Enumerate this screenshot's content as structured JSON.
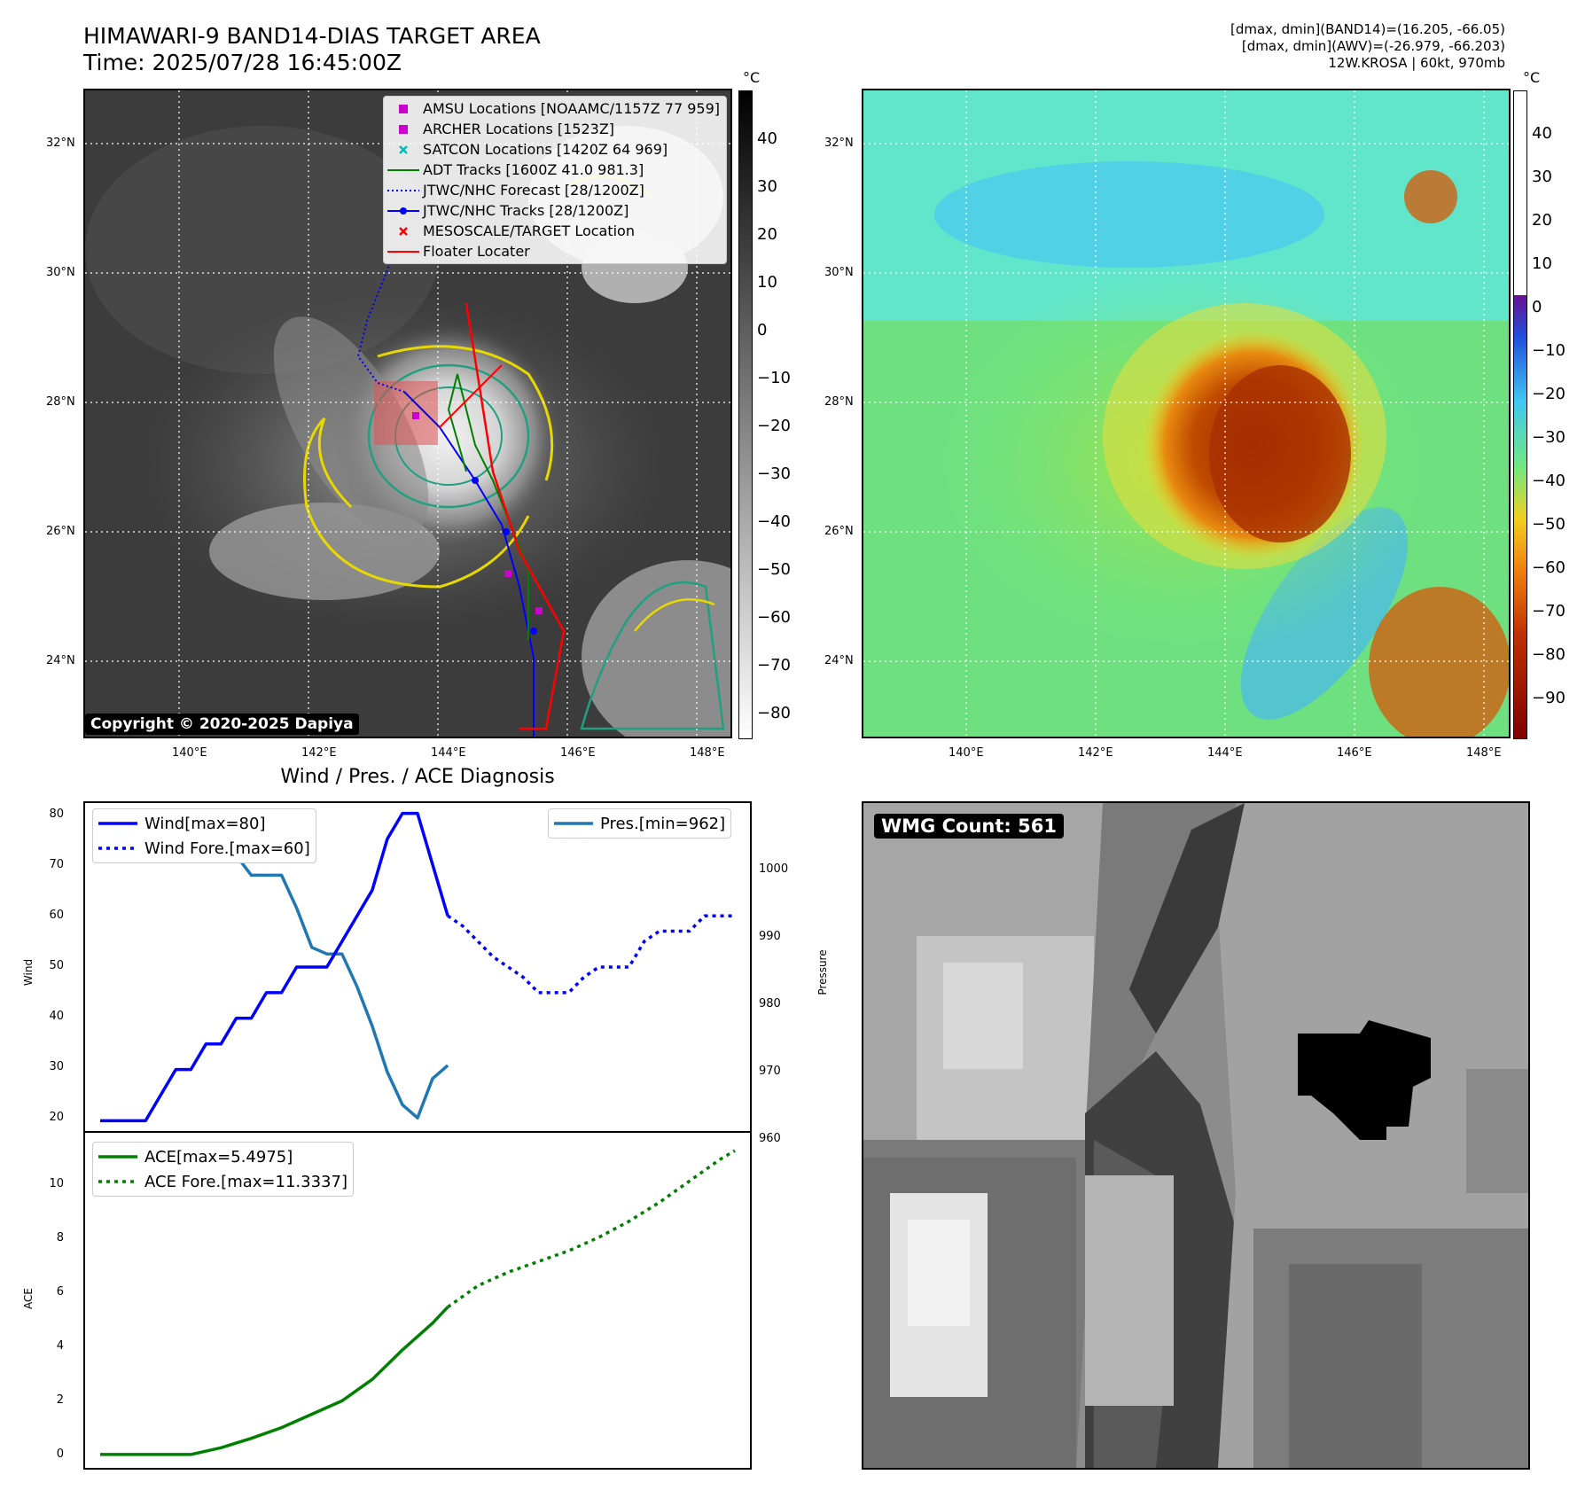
{
  "header": {
    "title_line1": "HIMAWARI-9 BAND14-DIAS TARGET AREA",
    "title_line2": "Time: 2025/07/28 16:45:00Z",
    "right_line1": "[dmax, dmin](BAND14)=(16.205, -66.05)",
    "right_line2": "[dmax, dmin](AWV)=(-26.979, -66.203)",
    "right_line3": "12W.KROSA | 60kt, 970mb"
  },
  "colors": {
    "wind": "#0000ff",
    "pressure": "#1f77b4",
    "ace": "#008000",
    "floater": "#ff0000",
    "amsu": "#cc00cc",
    "satcon": "#00bbbb",
    "adt": "#008000"
  },
  "map_axes": {
    "lat_ticks": [
      "32°N",
      "30°N",
      "28°N",
      "26°N",
      "24°N"
    ],
    "lon_ticks": [
      "140°E",
      "142°E",
      "144°E",
      "146°E",
      "148°E"
    ]
  },
  "ir_panel": {
    "cbar_unit": "°C",
    "cbar_ticks": [
      "40",
      "30",
      "20",
      "10",
      "0",
      "−10",
      "−20",
      "−30",
      "−40",
      "−50",
      "−60",
      "−70",
      "−80"
    ],
    "copyright": "Copyright © 2020-2025 Dapiya",
    "legend": [
      {
        "icon": "square-icon",
        "color": "#cc00cc",
        "label": "AMSU Locations [NOAAMC/1157Z 77 959]"
      },
      {
        "icon": "square-icon",
        "color": "#cc00cc",
        "label": "ARCHER Locations [1523Z]"
      },
      {
        "icon": "x-icon",
        "color": "#00bbbb",
        "label": "SATCON Locations [1420Z 64 969]"
      },
      {
        "icon": "line-icon",
        "color": "#008000",
        "label": "ADT Tracks [1600Z 41.0 981.3]"
      },
      {
        "icon": "dotted-line-icon",
        "color": "#0000ff",
        "label": "JTWC/NHC Forecast [28/1200Z]"
      },
      {
        "icon": "dot-line-icon",
        "color": "#0000ff",
        "label": "JTWC/NHC Tracks [28/1200Z]"
      },
      {
        "icon": "x-icon",
        "color": "#ff0000",
        "label": "MESOSCALE/TARGET Location"
      },
      {
        "icon": "line-icon",
        "color": "#ff0000",
        "label": "Floater Locater"
      }
    ]
  },
  "wv_panel": {
    "cbar_unit": "°C",
    "cbar_ticks": [
      "40",
      "30",
      "20",
      "10",
      "0",
      "−10",
      "−20",
      "−30",
      "−40",
      "−50",
      "−60",
      "−70",
      "−80",
      "−90"
    ]
  },
  "diag": {
    "title": "Wind / Pres. / ACE Diagnosis",
    "wind_ylabel": "Wind",
    "pres_ylabel": "Pressure",
    "ace_ylabel": "ACE",
    "wind_ticks": [
      "80",
      "70",
      "60",
      "50",
      "40",
      "30",
      "20"
    ],
    "pres_ticks": [
      "1000",
      "990",
      "980",
      "970",
      "960"
    ],
    "ace_ticks": [
      "10",
      "8",
      "6",
      "4",
      "2",
      "0"
    ],
    "legend_wind": "Wind[max=80]",
    "legend_wind_fore": "Wind Fore.[max=60]",
    "legend_pres": "Pres.[min=962]",
    "legend_ace": "ACE[max=5.4975]",
    "legend_ace_fore": "ACE Fore.[max=11.3337]"
  },
  "wmg_panel": {
    "badge": "WMG Count: 561"
  },
  "chart_data": [
    {
      "type": "line",
      "title": "Wind / Pres. / ACE Diagnosis",
      "ylabel": "Wind",
      "ylim": [
        18,
        82
      ],
      "series": [
        {
          "name": "Wind[max=80]",
          "x": [
            0,
            1,
            2,
            3,
            4,
            5,
            6,
            7,
            8,
            9,
            10,
            11,
            12,
            13,
            14,
            15,
            16,
            17,
            18,
            19,
            20,
            21,
            22,
            23
          ],
          "values": [
            20,
            20,
            20,
            20,
            25,
            30,
            30,
            35,
            35,
            40,
            40,
            45,
            45,
            50,
            50,
            50,
            55,
            60,
            65,
            75,
            80,
            80,
            70,
            60
          ]
        },
        {
          "name": "Wind Fore.[max=60]",
          "x": [
            23,
            24,
            25,
            26,
            27,
            28,
            29,
            30,
            31,
            32,
            33,
            34,
            35,
            36,
            37,
            38,
            39,
            40,
            41,
            42
          ],
          "values": [
            60,
            58,
            55,
            52,
            50,
            48,
            45,
            45,
            45,
            48,
            50,
            50,
            50,
            55,
            57,
            57,
            57,
            60,
            60,
            60
          ]
        }
      ]
    },
    {
      "type": "line",
      "ylabel": "Pressure",
      "ylim": [
        960,
        1010
      ],
      "series": [
        {
          "name": "Pres.[min=962]",
          "x": [
            0,
            1,
            2,
            3,
            4,
            5,
            6,
            7,
            8,
            9,
            10,
            11,
            12,
            13,
            14,
            15,
            16,
            17,
            18,
            19,
            20,
            21,
            22,
            23
          ],
          "values": [
            1008,
            1008,
            1008,
            1008,
            1006,
            1006,
            1005,
            1005,
            1002,
            1002,
            999,
            999,
            999,
            994,
            988,
            987,
            987,
            982,
            976,
            969,
            964,
            962,
            968,
            970
          ]
        }
      ]
    },
    {
      "type": "line",
      "ylabel": "ACE",
      "ylim": [
        -0.5,
        12
      ],
      "series": [
        {
          "name": "ACE[max=5.4975]",
          "x": [
            0,
            3,
            6,
            8,
            10,
            12,
            14,
            16,
            18,
            20,
            22,
            23
          ],
          "values": [
            0,
            0,
            0,
            0.25,
            0.6,
            1.0,
            1.5,
            2.0,
            2.8,
            3.9,
            4.9,
            5.4975
          ]
        },
        {
          "name": "ACE Fore.[max=11.3337]",
          "x": [
            23,
            25,
            27,
            29,
            31,
            33,
            35,
            37,
            39,
            41,
            42
          ],
          "values": [
            5.4975,
            6.3,
            6.8,
            7.2,
            7.6,
            8.1,
            8.7,
            9.4,
            10.2,
            11.0,
            11.3337
          ]
        }
      ]
    }
  ]
}
